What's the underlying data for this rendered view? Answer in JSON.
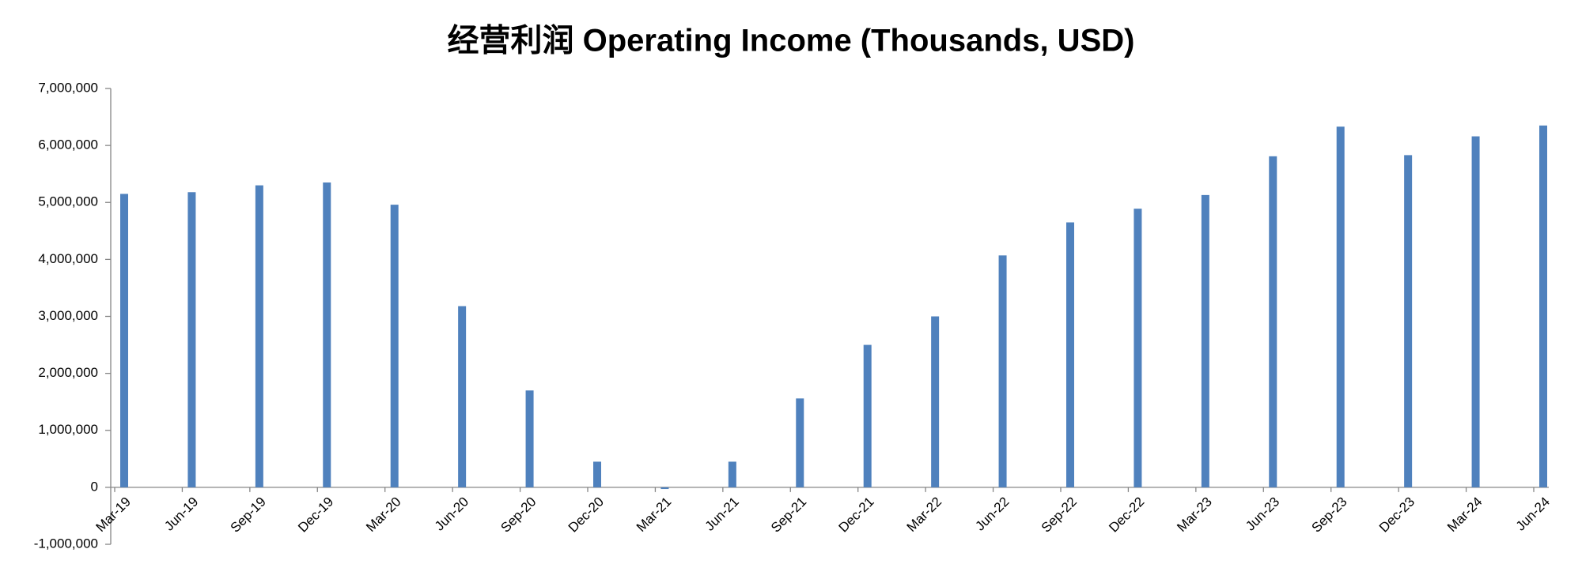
{
  "chart_data": {
    "type": "bar",
    "title": "经营利润 Operating Income (Thousands, USD)",
    "categories": [
      "Mar-19",
      "Jun-19",
      "Sep-19",
      "Dec-19",
      "Mar-20",
      "Jun-20",
      "Sep-20",
      "Dec-20",
      "Mar-21",
      "Jun-21",
      "Sep-21",
      "Dec-21",
      "Mar-22",
      "Jun-22",
      "Sep-22",
      "Dec-22",
      "Mar-23",
      "Jun-23",
      "Sep-23",
      "Dec-23",
      "Mar-24",
      "Jun-24"
    ],
    "values": [
      5150000,
      5180000,
      5300000,
      5350000,
      4960000,
      3180000,
      1700000,
      450000,
      -30000,
      450000,
      1560000,
      2500000,
      3000000,
      4070000,
      4650000,
      4890000,
      5130000,
      5810000,
      6330000,
      5830000,
      6160000,
      6350000
    ],
    "color": "#4f81bd",
    "ylim": [
      -1000000,
      7000000
    ],
    "yticks": [
      {
        "value": -1000000,
        "label": "-1,000,000"
      },
      0,
      {
        "value": 1000000,
        "label": "1,000,000"
      },
      {
        "value": 2000000,
        "label": "2,000,000"
      },
      {
        "value": 3000000,
        "label": "3,000,000"
      },
      {
        "value": 4000000,
        "label": "4,000,000"
      },
      {
        "value": 5000000,
        "label": "5,000,000"
      },
      {
        "value": 6000000,
        "label": "6,000,000"
      },
      {
        "value": 7000000,
        "label": "7,000,000"
      }
    ],
    "grid": false
  }
}
